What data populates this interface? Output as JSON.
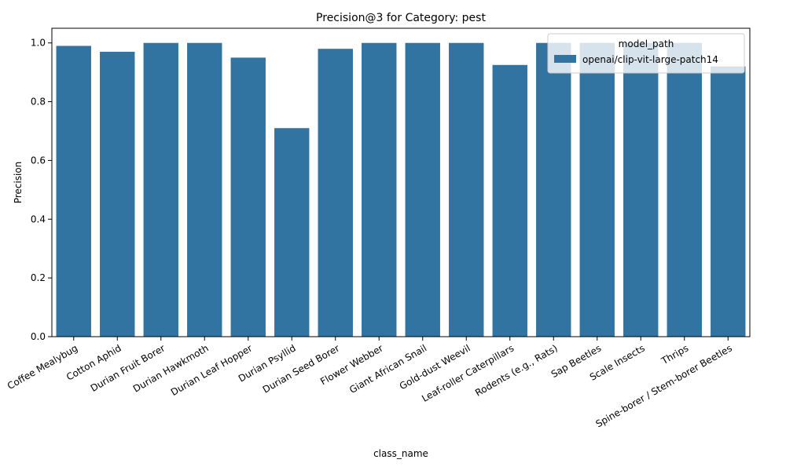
{
  "chart_data": {
    "type": "bar",
    "title": "Precision@3 for Category: pest",
    "xlabel": "class_name",
    "ylabel": "Precision",
    "ylim": [
      0,
      1.05
    ],
    "yticks": [
      0.0,
      0.2,
      0.4,
      0.6,
      0.8,
      1.0
    ],
    "ytick_labels": [
      "0.0",
      "0.2",
      "0.4",
      "0.6",
      "0.8",
      "1.0"
    ],
    "categories": [
      "Coffee Mealybug",
      "Cotton Aphid",
      "Durian Fruit Borer",
      "Durian Hawkmoth",
      "Durian Leaf Hopper",
      "Durian Psyllid",
      "Durian Seed Borer",
      "Flower Webber",
      "Giant African Snail",
      "Gold-dust Weevil",
      "Leaf-roller Caterpillars",
      "Rodents (e.g., Rats)",
      "Sap Beetles",
      "Scale Insects",
      "Thrips",
      "Spine-borer / Stem-borer Beetles"
    ],
    "series": [
      {
        "name": "openai/clip-vit-large-patch14",
        "color": "#3274a1",
        "values": [
          0.99,
          0.97,
          1.0,
          1.0,
          0.95,
          0.71,
          0.98,
          1.0,
          1.0,
          1.0,
          0.925,
          1.0,
          1.0,
          1.0,
          1.0,
          0.92
        ]
      }
    ],
    "bar_positions_note": "",
    "legend": {
      "title": "model_path",
      "placement": "top-right"
    },
    "grid": false
  }
}
